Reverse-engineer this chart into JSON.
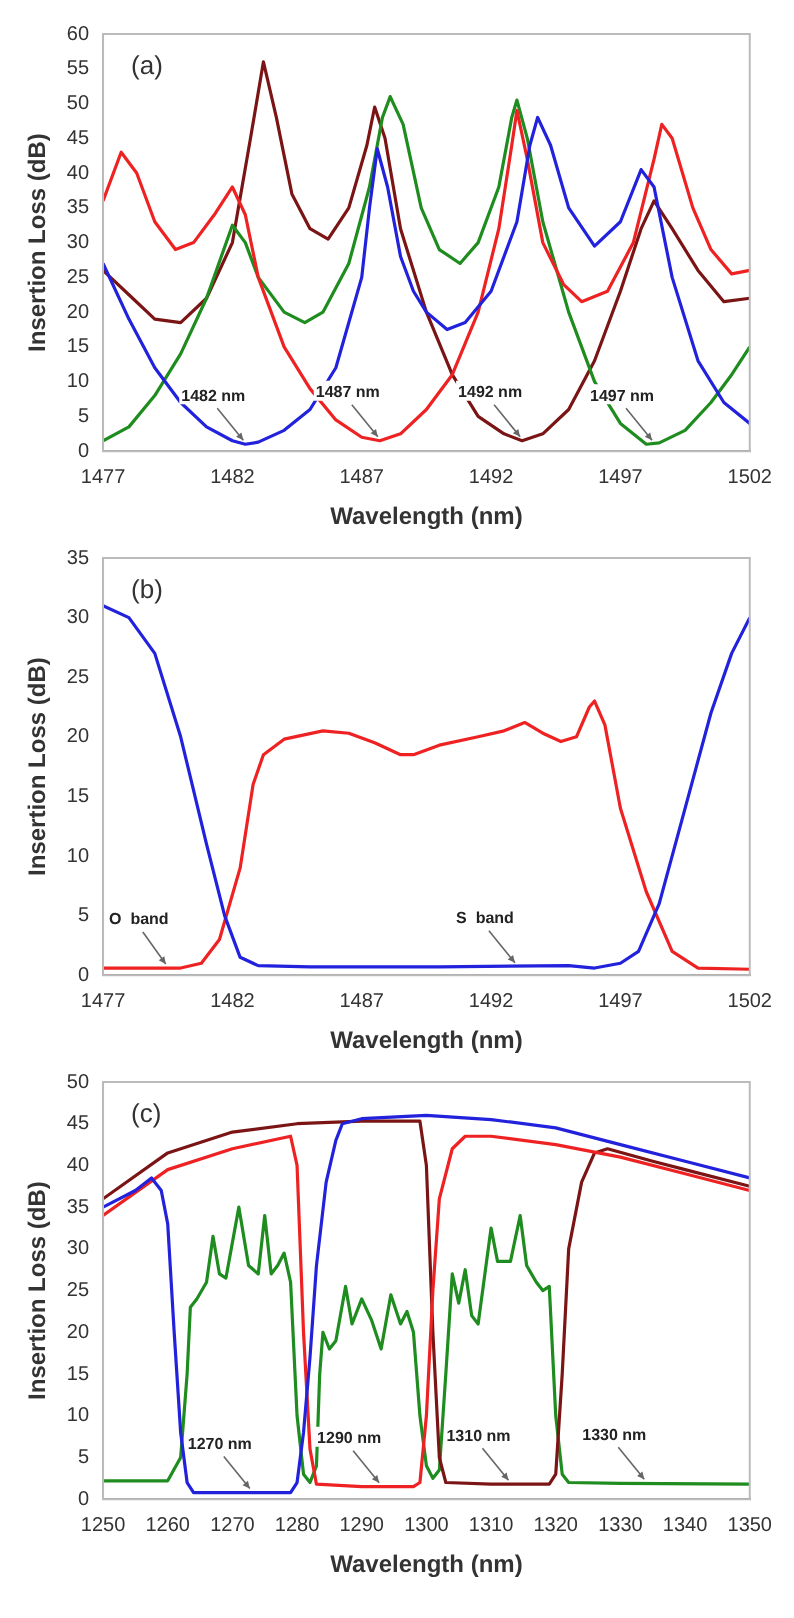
{
  "chart_data": [
    {
      "type": "line",
      "xlabel": "Wavelength (nm)",
      "ylabel": "Insertion Loss (dB)",
      "xlim": [
        1477,
        1502
      ],
      "xticks": [
        1477,
        1482,
        1487,
        1492,
        1497,
        1502
      ],
      "ylim": [
        0,
        60
      ],
      "yticks": [
        0,
        5,
        10,
        15,
        20,
        25,
        30,
        35,
        40,
        45,
        50,
        55,
        60
      ],
      "marker": "none",
      "line_style": "solid",
      "annotations": [
        "(a)",
        {
          "text": "1482 nm",
          "x": 1482.5,
          "y": 1
        },
        {
          "text": "1487 nm",
          "x": 1487.7,
          "y": 1.5
        },
        {
          "text": "1492 nm",
          "x": 1493.2,
          "y": 1.5
        },
        {
          "text": "1497 nm",
          "x": 1498.3,
          "y": 1
        }
      ],
      "series": [
        {
          "color": "#2222dd",
          "x": [
            1477,
            1478,
            1479,
            1480,
            1481,
            1482,
            1482.5,
            1483,
            1484,
            1485,
            1486,
            1487,
            1487.3,
            1487.6,
            1488,
            1488.5,
            1489,
            1489.5,
            1490.3,
            1491,
            1492,
            1493,
            1493.5,
            1493.8,
            1494.3,
            1495,
            1496,
            1497,
            1497.8,
            1498.3,
            1499,
            1500,
            1501,
            1502
          ],
          "values": [
            27,
            19,
            12,
            7,
            3.5,
            1.5,
            1,
            1.3,
            3,
            6,
            12,
            25,
            35,
            43.5,
            38,
            28,
            23,
            20,
            17.5,
            18.5,
            23,
            33,
            44,
            48,
            44,
            35,
            29.5,
            33,
            40.5,
            38,
            25,
            13,
            7,
            4
          ]
        },
        {
          "color": "#ee2222",
          "x": [
            1477,
            1477.7,
            1478.3,
            1479,
            1479.8,
            1480.5,
            1481.3,
            1482,
            1482.5,
            1483,
            1484,
            1485,
            1486,
            1487,
            1487.7,
            1488.5,
            1489.5,
            1490.5,
            1491.5,
            1492.3,
            1492.8,
            1493,
            1493.4,
            1494,
            1494.8,
            1495.5,
            1496.5,
            1497.5,
            1498.3,
            1498.6,
            1499,
            1499.8,
            1500.5,
            1501.3,
            1502
          ],
          "values": [
            36,
            43,
            40,
            33,
            29,
            30,
            34,
            38,
            34,
            25,
            15,
            9,
            4.5,
            2,
            1.5,
            2.5,
            6,
            11,
            20,
            32,
            44,
            49,
            42,
            30,
            24,
            21.5,
            23,
            30,
            42,
            47,
            45,
            35,
            29,
            25.5,
            26
          ]
        },
        {
          "color": "#1e8c1e",
          "x": [
            1477,
            1478,
            1479,
            1480,
            1481,
            1482,
            1482.5,
            1483,
            1484,
            1484.8,
            1485.5,
            1486.5,
            1487.3,
            1487.8,
            1488.1,
            1488.6,
            1489.3,
            1490,
            1490.8,
            1491.5,
            1492.3,
            1492.8,
            1493,
            1493.4,
            1494,
            1495,
            1496,
            1497,
            1498,
            1498.5,
            1499.5,
            1500.5,
            1501.3,
            1502
          ],
          "values": [
            1.5,
            3.5,
            8,
            14,
            22,
            32.5,
            30,
            25,
            20,
            18.5,
            20,
            27,
            38,
            48,
            51,
            47,
            35,
            29,
            27,
            30,
            38,
            48,
            50.5,
            45,
            33,
            20,
            10,
            4,
            1,
            1.2,
            3,
            7,
            11,
            15
          ]
        },
        {
          "color": "#7b1515",
          "x": [
            1477,
            1478,
            1479,
            1480,
            1481,
            1482,
            1482.7,
            1483.2,
            1483.7,
            1484.3,
            1485,
            1485.7,
            1486.5,
            1487.2,
            1487.5,
            1487.9,
            1488.5,
            1489.5,
            1490.5,
            1491.5,
            1492.5,
            1493.2,
            1494,
            1495,
            1496,
            1497,
            1497.8,
            1498.3,
            1499,
            1500,
            1501,
            1502
          ],
          "values": [
            26,
            22.5,
            19,
            18.5,
            22,
            30,
            45,
            56,
            48,
            37,
            32,
            30.5,
            35,
            44,
            49.5,
            45,
            32,
            20,
            11,
            5,
            2.5,
            1.5,
            2.5,
            6,
            13,
            23,
            32,
            36,
            32,
            26,
            21.5,
            22
          ]
        }
      ]
    },
    {
      "type": "line",
      "xlabel": "Wavelength (nm)",
      "ylabel": "Insertion Loss (dB)",
      "xlim": [
        1477,
        1502
      ],
      "xticks": [
        1477,
        1482,
        1487,
        1492,
        1497,
        1502
      ],
      "ylim": [
        0,
        35
      ],
      "yticks": [
        0,
        5,
        10,
        15,
        20,
        25,
        30,
        35
      ],
      "marker": "none",
      "line_style": "solid",
      "annotations": [
        "(b)",
        {
          "text": "O  band",
          "x": 1479.5,
          "y": 0.6
        },
        {
          "text": "S  band",
          "x": 1493,
          "y": 0.7
        }
      ],
      "series": [
        {
          "color": "#2222dd",
          "x": [
            1477,
            1478,
            1479,
            1480,
            1481,
            1481.7,
            1482.3,
            1483,
            1485,
            1490,
            1495,
            1496,
            1497,
            1497.7,
            1498.5,
            1499.5,
            1500.5,
            1501.3,
            1502
          ],
          "values": [
            31,
            30,
            27,
            20,
            11,
            5,
            1.5,
            0.8,
            0.7,
            0.7,
            0.8,
            0.6,
            1,
            2,
            6,
            14,
            22,
            27,
            30
          ]
        },
        {
          "color": "#ee2222",
          "x": [
            1477,
            1480,
            1480.8,
            1481.5,
            1482.3,
            1482.8,
            1483.2,
            1484,
            1485.5,
            1486.5,
            1487.5,
            1488.5,
            1489,
            1490,
            1491.5,
            1492.5,
            1493.3,
            1494,
            1494.7,
            1495.3,
            1495.8,
            1496,
            1496.4,
            1497,
            1498,
            1499,
            1500,
            1502
          ],
          "values": [
            0.6,
            0.6,
            1,
            3,
            9,
            16,
            18.5,
            19.8,
            20.5,
            20.3,
            19.5,
            18.5,
            18.5,
            19.3,
            20,
            20.5,
            21.2,
            20.3,
            19.6,
            20,
            22.5,
            23,
            21,
            14,
            7,
            2,
            0.6,
            0.5
          ]
        }
      ]
    },
    {
      "type": "line",
      "xlabel": "Wavelength (nm)",
      "ylabel": "Insertion Loss (dB)",
      "xlim": [
        1250,
        1350
      ],
      "xticks": [
        1250,
        1260,
        1270,
        1280,
        1290,
        1300,
        1310,
        1320,
        1330,
        1340,
        1350
      ],
      "ylim": [
        0,
        50
      ],
      "yticks": [
        0,
        5,
        10,
        15,
        20,
        25,
        30,
        35,
        40,
        45,
        50
      ],
      "marker": "none",
      "line_style": "solid",
      "annotations": [
        "(c)",
        {
          "text": "1270 nm",
          "x": 1273,
          "y": 0.8
        },
        {
          "text": "1290 nm",
          "x": 1293,
          "y": 1.5
        },
        {
          "text": "1310 nm",
          "x": 1313,
          "y": 1.8
        },
        {
          "text": "1330 nm",
          "x": 1334,
          "y": 1.9
        }
      ],
      "series": [
        {
          "color": "#2222dd",
          "x": [
            1250,
            1255,
            1257.5,
            1259,
            1260,
            1261,
            1262,
            1263,
            1264,
            1279,
            1280,
            1281,
            1282,
            1283,
            1284.5,
            1286,
            1287,
            1290,
            1300,
            1310,
            1320,
            1330,
            1340,
            1350
          ],
          "values": [
            35,
            37,
            38.5,
            37,
            33,
            20,
            8,
            2,
            0.8,
            0.8,
            2,
            8,
            17,
            28,
            38,
            43,
            45,
            45.6,
            46,
            45.5,
            44.5,
            42.5,
            40.5,
            38.5
          ]
        },
        {
          "color": "#ee2222",
          "x": [
            1250,
            1260,
            1270,
            1279,
            1280,
            1281,
            1282,
            1283,
            1290,
            1298,
            1299,
            1300,
            1301,
            1302,
            1304,
            1306,
            1310,
            1320,
            1330,
            1340,
            1350
          ],
          "values": [
            34,
            39.5,
            42,
            43.5,
            40,
            20,
            6,
            1.8,
            1.5,
            1.5,
            2,
            10,
            25,
            36,
            42,
            43.5,
            43.5,
            42.5,
            41,
            39,
            37
          ]
        },
        {
          "color": "#7b1515",
          "x": [
            1250,
            1260,
            1270,
            1280,
            1290,
            1299,
            1300,
            1301,
            1302,
            1303,
            1310,
            1319,
            1320,
            1321,
            1322,
            1324,
            1326,
            1328,
            1335,
            1340,
            1350
          ],
          "values": [
            36,
            41.5,
            44,
            45,
            45.3,
            45.3,
            40,
            20,
            5,
            2,
            1.8,
            1.8,
            3,
            15,
            30,
            38,
            41.5,
            42,
            40.5,
            39.5,
            37.5
          ]
        },
        {
          "color": "#1e8c1e",
          "x": [
            1250,
            1260,
            1262,
            1263,
            1263.5,
            1264.5,
            1266,
            1267,
            1268,
            1269,
            1271,
            1272.5,
            1274,
            1275,
            1276,
            1277,
            1278,
            1279,
            1280,
            1281,
            1282,
            1283,
            1283.5,
            1284,
            1285,
            1286,
            1287.5,
            1288.5,
            1290,
            1291.5,
            1293,
            1294.5,
            1296,
            1297,
            1298,
            1299,
            1300,
            1301,
            1302,
            1303,
            1304,
            1305,
            1306,
            1307,
            1308,
            1310,
            1311,
            1313,
            1314.5,
            1315.5,
            1317,
            1318,
            1319,
            1320,
            1321,
            1322,
            1330,
            1350
          ],
          "values": [
            2.2,
            2.2,
            5,
            15,
            23,
            24,
            26,
            31.5,
            27,
            26.5,
            35,
            28,
            27,
            34,
            27,
            28,
            29.5,
            26,
            10,
            3,
            2,
            4,
            15,
            20,
            18,
            19,
            25.5,
            21,
            24,
            21.5,
            18,
            24.5,
            21,
            22.5,
            20,
            10,
            4,
            2.5,
            3.5,
            15,
            27,
            23.5,
            27.5,
            22,
            21,
            32.5,
            28.5,
            28.5,
            34,
            28,
            26,
            25,
            25.5,
            10,
            3,
            2,
            1.9,
            1.8
          ]
        }
      ]
    }
  ]
}
